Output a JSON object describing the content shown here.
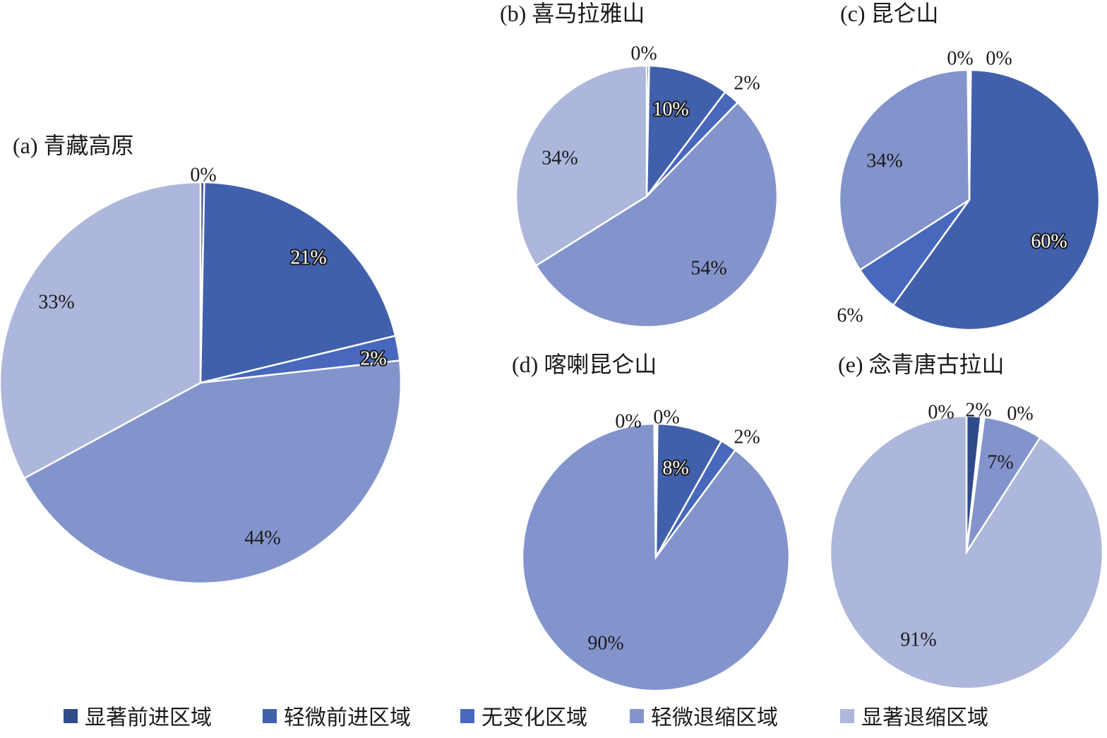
{
  "chart_data": [
    {
      "type": "pie",
      "title": "(a) 青藏高原",
      "categories": [
        "显著前进区域",
        "轻微前进区域",
        "无变化区域",
        "轻微退缩区域",
        "显著退缩区域"
      ],
      "values": [
        0.3,
        21,
        2,
        44,
        33
      ],
      "value_labels": [
        "0%",
        "21%",
        "2%",
        "44%",
        "33%"
      ]
    },
    {
      "type": "pie",
      "title": "(b) 喜马拉雅山",
      "categories": [
        "显著前进区域",
        "轻微前进区域",
        "无变化区域",
        "轻微退缩区域",
        "显著退缩区域"
      ],
      "values": [
        0.3,
        10,
        2,
        54,
        34
      ],
      "value_labels": [
        "0%",
        "10%",
        "2%",
        "54%",
        "34%"
      ]
    },
    {
      "type": "pie",
      "title": "(c) 昆仑山",
      "categories": [
        "显著前进区域",
        "轻微前进区域",
        "无变化区域",
        "轻微退缩区域",
        "显著退缩区域"
      ],
      "values": [
        0.2,
        60,
        6,
        34,
        0.2
      ],
      "value_labels": [
        "0%",
        "60%",
        "6%",
        "34%",
        "0%"
      ]
    },
    {
      "type": "pie",
      "title": "(d) 喀喇昆仑山",
      "categories": [
        "显著前进区域",
        "轻微前进区域",
        "无变化区域",
        "轻微退缩区域",
        "显著退缩区域"
      ],
      "values": [
        0.2,
        8,
        2,
        90,
        0.2
      ],
      "value_labels": [
        "0%",
        "8%",
        "2%",
        "90%",
        "0%"
      ]
    },
    {
      "type": "pie",
      "title": "(e) 念青唐古拉山",
      "categories": [
        "显著前进区域",
        "轻微前进区域",
        "无变化区域",
        "轻微退缩区域",
        "显著退缩区域"
      ],
      "values": [
        1.7,
        0.2,
        0.2,
        7,
        91
      ],
      "value_labels": [
        "2%",
        "0%",
        "0%",
        "7%",
        "91%"
      ]
    }
  ],
  "legend": {
    "placement": "bottom",
    "items": [
      "显著前进区域",
      "轻微前进区域",
      "无变化区域",
      "轻微退缩区域",
      "显著退缩区域"
    ]
  },
  "colors": [
    "#2f4b8a",
    "#4160ab",
    "#4868bd",
    "#8394cc",
    "#adb6db"
  ]
}
